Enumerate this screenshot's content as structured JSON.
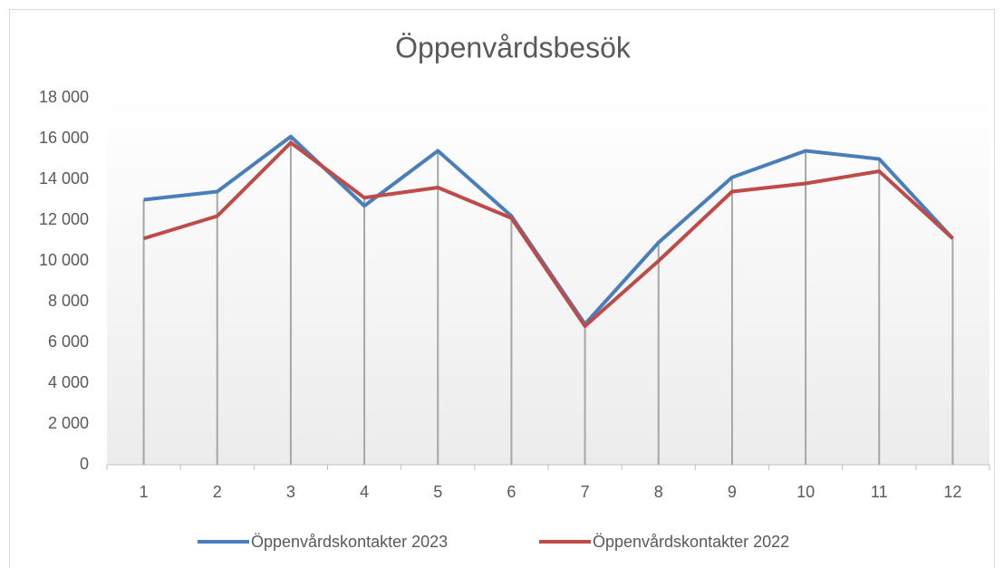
{
  "chart_data": {
    "type": "line",
    "title": "Öppenvårdsbesök",
    "categories": [
      "1",
      "2",
      "3",
      "4",
      "5",
      "6",
      "7",
      "8",
      "9",
      "10",
      "11",
      "12"
    ],
    "series": [
      {
        "name": "Öppenvårdskontakter 2023",
        "color": "#4a7ebb",
        "values": [
          13000,
          13400,
          16100,
          12700,
          15400,
          12200,
          6900,
          10900,
          14100,
          15400,
          15000,
          11100
        ]
      },
      {
        "name": "Öppenvårdskontakter 2022",
        "color": "#be4b48",
        "values": [
          11100,
          12200,
          15800,
          13100,
          13600,
          12100,
          6800,
          10000,
          13400,
          13800,
          14400,
          11100
        ]
      }
    ],
    "ylim": [
      0,
      18000
    ],
    "yticks": [
      0,
      {
        "value": 2000,
        "label": "2 000"
      },
      {
        "value": 4000,
        "label": "4 000"
      },
      {
        "value": 6000,
        "label": "6 000"
      },
      {
        "value": 8000,
        "label": "8 000"
      },
      {
        "value": 10000,
        "label": "10 000"
      },
      {
        "value": 12000,
        "label": "12 000"
      },
      {
        "value": 14000,
        "label": "14 000"
      },
      {
        "value": 16000,
        "label": "16 000"
      },
      {
        "value": 18000,
        "label": "18 000"
      }
    ],
    "drop_lines": true,
    "legend": "bottom"
  }
}
